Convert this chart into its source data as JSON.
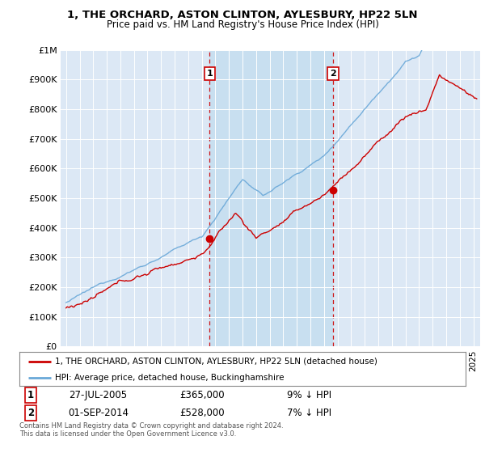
{
  "title": "1, THE ORCHARD, ASTON CLINTON, AYLESBURY, HP22 5LN",
  "subtitle": "Price paid vs. HM Land Registry's House Price Index (HPI)",
  "ylabel_ticks": [
    "£0",
    "£100K",
    "£200K",
    "£300K",
    "£400K",
    "£500K",
    "£600K",
    "£700K",
    "£800K",
    "£900K",
    "£1M"
  ],
  "ytick_values": [
    0,
    100000,
    200000,
    300000,
    400000,
    500000,
    600000,
    700000,
    800000,
    900000,
    1000000
  ],
  "ylim": [
    0,
    1000000
  ],
  "xlim_start": 1994.6,
  "xlim_end": 2025.5,
  "hpi_color": "#6aa8d8",
  "price_color": "#cc0000",
  "purchase1_x": 2005.57,
  "purchase1_y": 365000,
  "purchase2_x": 2014.67,
  "purchase2_y": 528000,
  "vline1_x": 2005.57,
  "vline2_x": 2014.67,
  "legend_price_label": "1, THE ORCHARD, ASTON CLINTON, AYLESBURY, HP22 5LN (detached house)",
  "legend_hpi_label": "HPI: Average price, detached house, Buckinghamshire",
  "annotation1_date": "27-JUL-2005",
  "annotation1_price": "£365,000",
  "annotation1_hpi": "9% ↓ HPI",
  "annotation2_date": "01-SEP-2014",
  "annotation2_price": "£528,000",
  "annotation2_hpi": "7% ↓ HPI",
  "footer": "Contains HM Land Registry data © Crown copyright and database right 2024.\nThis data is licensed under the Open Government Licence v3.0.",
  "bg_color": "#ffffff",
  "plot_bg_color": "#dce8f5",
  "shade_color": "#c8dff0"
}
